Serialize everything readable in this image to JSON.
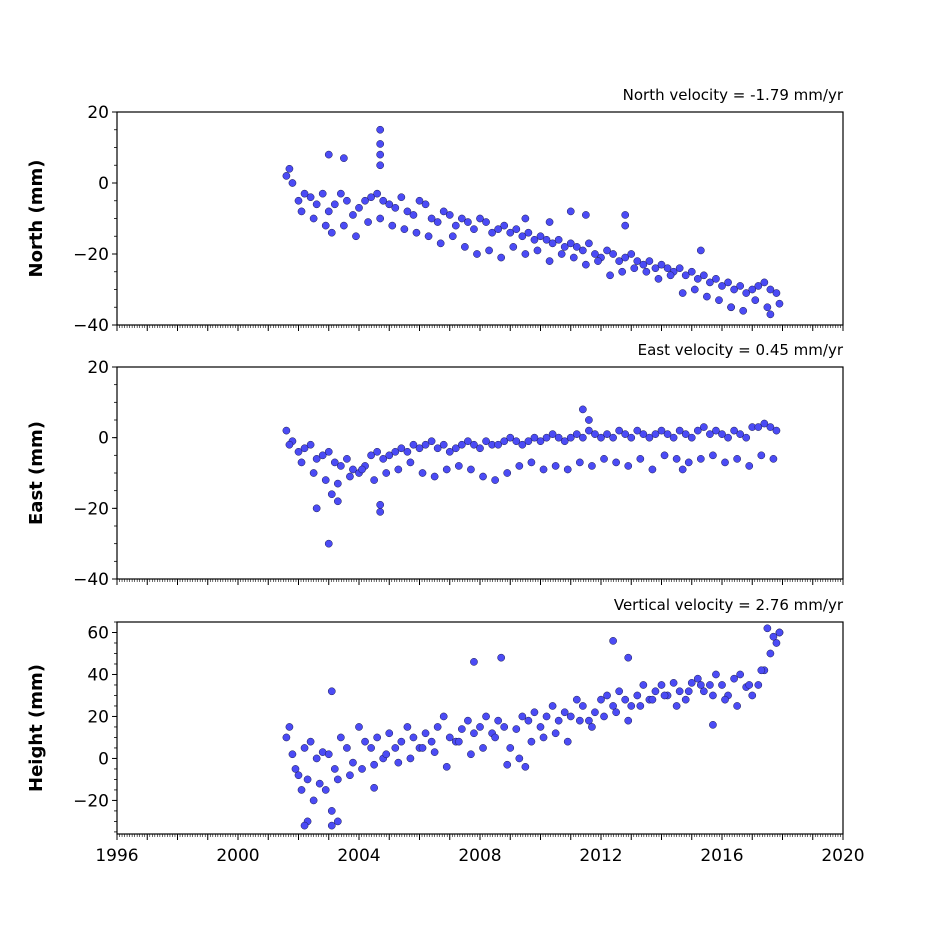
{
  "chart_data": [
    {
      "type": "scatter",
      "title": "North velocity = -1.79 mm/yr",
      "xlabel": "",
      "ylabel": "North (mm)",
      "xlim": [
        1996,
        2020
      ],
      "ylim": [
        -40,
        20
      ],
      "xticks": [
        "1996",
        "2000",
        "2004",
        "2008",
        "2012",
        "2016",
        "2020"
      ],
      "yticks": [
        "20",
        "0",
        "−20",
        "−40"
      ],
      "ytick_values": [
        20,
        0,
        -20,
        -40
      ],
      "marker_color": "#4b4bf5",
      "series": [
        {
          "x": [
            2001.6,
            2001.8,
            2002.0,
            2002.2,
            2002.4,
            2002.6,
            2002.8,
            2003.0,
            2003.2,
            2003.4,
            2003.6,
            2003.8,
            2004.0,
            2004.2,
            2004.4,
            2004.6,
            2004.8,
            2005.0,
            2005.2,
            2005.4,
            2005.6,
            2005.8,
            2006.0,
            2006.2,
            2006.4,
            2006.6,
            2006.8,
            2007.0,
            2007.2,
            2007.4,
            2007.6,
            2007.8,
            2008.0,
            2008.2,
            2008.4,
            2008.6,
            2008.8,
            2009.0,
            2009.2,
            2009.4,
            2009.6,
            2009.8,
            2010.0,
            2010.2,
            2010.4,
            2010.6,
            2010.8,
            2011.0,
            2011.2,
            2011.4,
            2011.6,
            2011.8,
            2012.0,
            2012.2,
            2012.4,
            2012.6,
            2012.8,
            2013.0,
            2013.2,
            2013.4,
            2013.6,
            2013.8,
            2014.0,
            2014.2,
            2014.4,
            2014.6,
            2014.8,
            2015.0,
            2015.2,
            2015.4,
            2015.6,
            2015.8,
            2016.0,
            2016.2,
            2016.4,
            2016.6,
            2016.8,
            2017.0,
            2017.2,
            2017.4,
            2017.6,
            2017.8,
            2001.7,
            2002.1,
            2002.5,
            2002.9,
            2003.1,
            2003.5,
            2003.9,
            2004.3,
            2004.7,
            2005.1,
            2005.5,
            2005.9,
            2006.3,
            2006.7,
            2007.1,
            2007.5,
            2007.9,
            2008.3,
            2008.7,
            2009.1,
            2009.5,
            2009.9,
            2010.3,
            2010.7,
            2011.1,
            2011.5,
            2011.9,
            2012.3,
            2012.7,
            2013.1,
            2013.5,
            2013.9,
            2014.3,
            2014.7,
            2015.1,
            2015.5,
            2015.9,
            2016.3,
            2016.7,
            2017.1,
            2017.5,
            2017.9,
            2003.0,
            2003.5,
            2004.7,
            2004.7,
            2004.7,
            2004.7,
            2009.5,
            2010.3,
            2011.0,
            2011.5,
            2012.8,
            2012.8,
            2015.3,
            2016.3,
            2017.6
          ],
          "y": [
            2,
            0,
            -5,
            -3,
            -4,
            -6,
            -3,
            -8,
            -6,
            -3,
            -5,
            -9,
            -7,
            -5,
            -4,
            -3,
            -5,
            -6,
            -7,
            -4,
            -8,
            -9,
            -5,
            -6,
            -10,
            -11,
            -8,
            -9,
            -12,
            -10,
            -11,
            -13,
            -10,
            -11,
            -14,
            -13,
            -12,
            -14,
            -13,
            -15,
            -14,
            -16,
            -15,
            -16,
            -17,
            -16,
            -18,
            -17,
            -18,
            -19,
            -17,
            -20,
            -21,
            -19,
            -20,
            -22,
            -21,
            -20,
            -22,
            -23,
            -22,
            -24,
            -23,
            -24,
            -25,
            -24,
            -26,
            -25,
            -27,
            -26,
            -28,
            -27,
            -29,
            -28,
            -30,
            -29,
            -31,
            -30,
            -29,
            -28,
            -30,
            -31,
            4,
            -8,
            -10,
            -12,
            -14,
            -12,
            -15,
            -11,
            -10,
            -12,
            -13,
            -14,
            -15,
            -17,
            -15,
            -18,
            -20,
            -19,
            -21,
            -18,
            -20,
            -19,
            -22,
            -20,
            -21,
            -23,
            -22,
            -26,
            -25,
            -24,
            -25,
            -27,
            -26,
            -31,
            -30,
            -32,
            -33,
            -35,
            -36,
            -33,
            -35,
            -34,
            8,
            7,
            15,
            11,
            8,
            5,
            -10,
            -11,
            -8,
            -9,
            -9,
            -12,
            -19,
            -35,
            -37
          ]
        }
      ]
    },
    {
      "type": "scatter",
      "title": "East velocity = 0.45 mm/yr",
      "xlabel": "",
      "ylabel": "East (mm)",
      "xlim": [
        1996,
        2020
      ],
      "ylim": [
        -40,
        20
      ],
      "xticks": [
        "1996",
        "2000",
        "2004",
        "2008",
        "2012",
        "2016",
        "2020"
      ],
      "yticks": [
        "20",
        "0",
        "−20",
        "−40"
      ],
      "ytick_values": [
        20,
        0,
        -20,
        -40
      ],
      "marker_color": "#4b4bf5",
      "series": [
        {
          "x": [
            2001.6,
            2001.8,
            2002.0,
            2002.2,
            2002.4,
            2002.6,
            2002.8,
            2003.0,
            2003.2,
            2003.4,
            2003.6,
            2003.8,
            2004.0,
            2004.2,
            2004.4,
            2004.6,
            2004.8,
            2005.0,
            2005.2,
            2005.4,
            2005.6,
            2005.8,
            2006.0,
            2006.2,
            2006.4,
            2006.6,
            2006.8,
            2007.0,
            2007.2,
            2007.4,
            2007.6,
            2007.8,
            2008.0,
            2008.2,
            2008.4,
            2008.6,
            2008.8,
            2009.0,
            2009.2,
            2009.4,
            2009.6,
            2009.8,
            2010.0,
            2010.2,
            2010.4,
            2010.6,
            2010.8,
            2011.0,
            2011.2,
            2011.4,
            2011.6,
            2011.8,
            2012.0,
            2012.2,
            2012.4,
            2012.6,
            2012.8,
            2013.0,
            2013.2,
            2013.4,
            2013.6,
            2013.8,
            2014.0,
            2014.2,
            2014.4,
            2014.6,
            2014.8,
            2015.0,
            2015.2,
            2015.4,
            2015.6,
            2015.8,
            2016.0,
            2016.2,
            2016.4,
            2016.6,
            2016.8,
            2017.0,
            2017.2,
            2017.4,
            2017.6,
            2017.8,
            2001.7,
            2002.1,
            2002.5,
            2002.9,
            2003.3,
            2003.7,
            2004.1,
            2004.5,
            2004.9,
            2005.3,
            2005.7,
            2006.1,
            2006.5,
            2006.9,
            2007.3,
            2007.7,
            2008.1,
            2008.5,
            2008.9,
            2009.3,
            2009.7,
            2010.1,
            2010.5,
            2010.9,
            2011.3,
            2011.7,
            2012.1,
            2012.5,
            2012.9,
            2013.3,
            2013.7,
            2014.1,
            2014.5,
            2014.9,
            2015.3,
            2015.7,
            2016.1,
            2016.5,
            2016.9,
            2017.3,
            2017.7,
            2002.6,
            2003.0,
            2003.1,
            2003.3,
            2004.7,
            2004.7,
            2011.4,
            2011.6,
            2014.7
          ],
          "y": [
            2,
            -1,
            -4,
            -3,
            -2,
            -6,
            -5,
            -4,
            -7,
            -8,
            -6,
            -9,
            -10,
            -8,
            -5,
            -4,
            -6,
            -5,
            -4,
            -3,
            -4,
            -2,
            -3,
            -2,
            -1,
            -3,
            -2,
            -4,
            -3,
            -2,
            -1,
            -2,
            -3,
            -1,
            -2,
            -2,
            -1,
            0,
            -1,
            -2,
            -1,
            0,
            -1,
            0,
            1,
            0,
            -1,
            0,
            1,
            0,
            2,
            1,
            0,
            1,
            0,
            2,
            1,
            0,
            2,
            1,
            0,
            1,
            2,
            1,
            0,
            2,
            1,
            0,
            2,
            3,
            1,
            2,
            1,
            0,
            2,
            1,
            0,
            3,
            3,
            4,
            3,
            2,
            -2,
            -7,
            -10,
            -12,
            -13,
            -11,
            -9,
            -12,
            -10,
            -9,
            -7,
            -10,
            -11,
            -9,
            -8,
            -9,
            -11,
            -12,
            -10,
            -8,
            -7,
            -9,
            -8,
            -9,
            -7,
            -8,
            -6,
            -7,
            -8,
            -6,
            -9,
            -5,
            -6,
            -7,
            -6,
            -5,
            -7,
            -6,
            -8,
            -5,
            -6,
            -20,
            -30,
            -16,
            -18,
            -21,
            -19,
            8,
            5,
            -9
          ]
        }
      ]
    },
    {
      "type": "scatter",
      "title": "Vertical velocity = 2.76 mm/yr",
      "xlabel": "",
      "ylabel": "Height (mm)",
      "xlim": [
        1996,
        2020
      ],
      "ylim": [
        -36,
        65
      ],
      "xticks": [
        "1996",
        "2000",
        "2004",
        "2008",
        "2012",
        "2016",
        "2020"
      ],
      "yticks": [
        "60",
        "40",
        "20",
        "0",
        "−20"
      ],
      "ytick_values": [
        60,
        40,
        20,
        0,
        -20
      ],
      "marker_color": "#4b4bf5",
      "series": [
        {
          "x": [
            2001.6,
            2001.8,
            2002.0,
            2002.2,
            2002.4,
            2002.6,
            2002.8,
            2003.0,
            2003.2,
            2003.4,
            2003.6,
            2003.8,
            2004.0,
            2004.2,
            2004.4,
            2004.6,
            2004.8,
            2005.0,
            2005.2,
            2005.4,
            2005.6,
            2005.8,
            2006.0,
            2006.2,
            2006.4,
            2006.6,
            2006.8,
            2007.0,
            2007.2,
            2007.4,
            2007.6,
            2007.8,
            2008.0,
            2008.2,
            2008.4,
            2008.6,
            2008.8,
            2009.0,
            2009.2,
            2009.4,
            2009.6,
            2009.8,
            2010.0,
            2010.2,
            2010.4,
            2010.6,
            2010.8,
            2011.0,
            2011.2,
            2011.4,
            2011.6,
            2011.8,
            2012.0,
            2012.2,
            2012.4,
            2012.6,
            2012.8,
            2013.0,
            2013.2,
            2013.4,
            2013.6,
            2013.8,
            2014.0,
            2014.2,
            2014.4,
            2014.6,
            2014.8,
            2015.0,
            2015.2,
            2015.4,
            2015.6,
            2015.8,
            2016.0,
            2016.2,
            2016.4,
            2016.6,
            2016.8,
            2017.0,
            2017.2,
            2017.4,
            2017.6,
            2017.8,
            2001.7,
            2001.9,
            2002.1,
            2002.3,
            2002.5,
            2002.7,
            2002.9,
            2003.1,
            2003.3,
            2003.7,
            2004.1,
            2004.5,
            2004.9,
            2005.3,
            2005.7,
            2006.1,
            2006.5,
            2006.9,
            2007.3,
            2007.7,
            2008.1,
            2008.5,
            2008.9,
            2009.3,
            2009.7,
            2010.1,
            2010.5,
            2010.9,
            2011.3,
            2011.7,
            2012.1,
            2012.5,
            2012.9,
            2013.3,
            2013.7,
            2014.1,
            2014.5,
            2014.9,
            2015.3,
            2015.7,
            2016.1,
            2016.5,
            2016.9,
            2017.3,
            2017.7,
            2017.9,
            2002.3,
            2003.1,
            2003.3,
            2004.5,
            2007.8,
            2008.7,
            2012.4,
            2012.9,
            2017.5,
            2017.9,
            2003.1,
            2002.2,
            2009.5,
            2015.7
          ],
          "y": [
            10,
            2,
            -8,
            5,
            8,
            0,
            3,
            2,
            -5,
            10,
            5,
            -2,
            15,
            8,
            5,
            10,
            0,
            12,
            5,
            8,
            15,
            10,
            5,
            12,
            8,
            15,
            20,
            10,
            8,
            14,
            18,
            12,
            15,
            20,
            12,
            18,
            15,
            5,
            14,
            20,
            18,
            22,
            15,
            20,
            25,
            18,
            22,
            20,
            28,
            25,
            18,
            22,
            28,
            30,
            25,
            32,
            28,
            25,
            30,
            35,
            28,
            32,
            35,
            30,
            36,
            32,
            28,
            36,
            38,
            32,
            35,
            40,
            35,
            30,
            38,
            40,
            34,
            30,
            35,
            42,
            50,
            55,
            15,
            -5,
            -15,
            -10,
            -20,
            -12,
            -15,
            -25,
            -10,
            -8,
            -5,
            -3,
            2,
            -2,
            0,
            5,
            3,
            -4,
            8,
            2,
            5,
            10,
            -3,
            0,
            8,
            10,
            12,
            8,
            18,
            15,
            20,
            22,
            18,
            25,
            28,
            30,
            25,
            32,
            35,
            30,
            28,
            25,
            35,
            42,
            58,
            60,
            -30,
            -32,
            -30,
            -14,
            46,
            48,
            56,
            48,
            62,
            60,
            32,
            -32,
            -4,
            16
          ]
        }
      ]
    }
  ]
}
